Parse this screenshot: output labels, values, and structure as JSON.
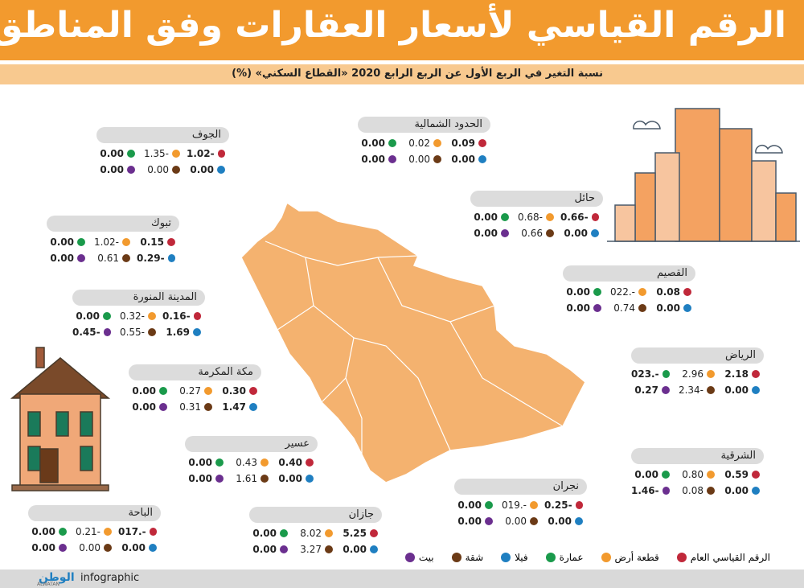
{
  "header": {
    "title": "الرقم القياسي لأسعار العقارات وفق المناطق",
    "subtitle": "نسبة التغير في الربع الأول عن الربع الرابع 2020 «القطاع السكني» (%)"
  },
  "regions": [
    {
      "name": "الجوف",
      "values": [
        "1.02-",
        "1.35-",
        "0.00",
        "0.00",
        "0.00",
        "0.00"
      ]
    },
    {
      "name": "الحدود الشمالية",
      "values": [
        "0.09",
        "0.02",
        "0.00",
        "0.00",
        "0.00",
        "0.00"
      ]
    },
    {
      "name": "تبوك",
      "values": [
        "0.15",
        "1.02-",
        "0.00",
        "0.29-",
        "0.61",
        "0.00"
      ]
    },
    {
      "name": "حائل",
      "values": [
        "0.66-",
        "0.68-",
        "0.00",
        "0.00",
        "0.66",
        "0.00"
      ]
    },
    {
      "name": "المدينة المنورة",
      "values": [
        "0.16-",
        "0.32-",
        "0.00",
        "1.69",
        "0.55-",
        "0.45-"
      ]
    },
    {
      "name": "القصيم",
      "values": [
        "0.08",
        "022.-",
        "0.00",
        "0.00",
        "0.74",
        "0.00"
      ]
    },
    {
      "name": "الرياض",
      "values": [
        "2.18",
        "2.96",
        "023.-",
        "0.00",
        "2.34-",
        "0.27"
      ]
    },
    {
      "name": "مكة المكرمة",
      "values": [
        "0.30",
        "0.27",
        "0.00",
        "1.47",
        "0.31",
        "0.00"
      ]
    },
    {
      "name": "عسير",
      "values": [
        "0.40",
        "0.43",
        "0.00",
        "0.00",
        "1.61",
        "0.00"
      ]
    },
    {
      "name": "الشرقية",
      "values": [
        "0.59",
        "0.80",
        "0.00",
        "0.00",
        "0.08",
        "1.46-"
      ]
    },
    {
      "name": "نجران",
      "values": [
        "0.25-",
        "019.-",
        "0.00",
        "0.00",
        "0.00",
        "0.00"
      ]
    },
    {
      "name": "الباحة",
      "values": [
        "017.-",
        "0.21-",
        "0.00",
        "0.00",
        "0.00",
        "0.00"
      ]
    },
    {
      "name": "جازان",
      "values": [
        "5.25",
        "8.02",
        "0.00",
        "0.00",
        "3.27",
        "0.00"
      ]
    }
  ],
  "legend": [
    {
      "label": "الرقم القياسي العام",
      "color": "#c0283a"
    },
    {
      "label": "قطعة أرض",
      "color": "#f29a2e"
    },
    {
      "label": "عمارة",
      "color": "#1a9a4b"
    },
    {
      "label": "فيلا",
      "color": "#1f7fc1"
    },
    {
      "label": "شقة",
      "color": "#6b3a16"
    },
    {
      "label": "بيت",
      "color": "#6b2f8f"
    }
  ],
  "footer": {
    "brand": "الوطن",
    "brand_latin": "ALWATAN",
    "section": "infographic"
  }
}
